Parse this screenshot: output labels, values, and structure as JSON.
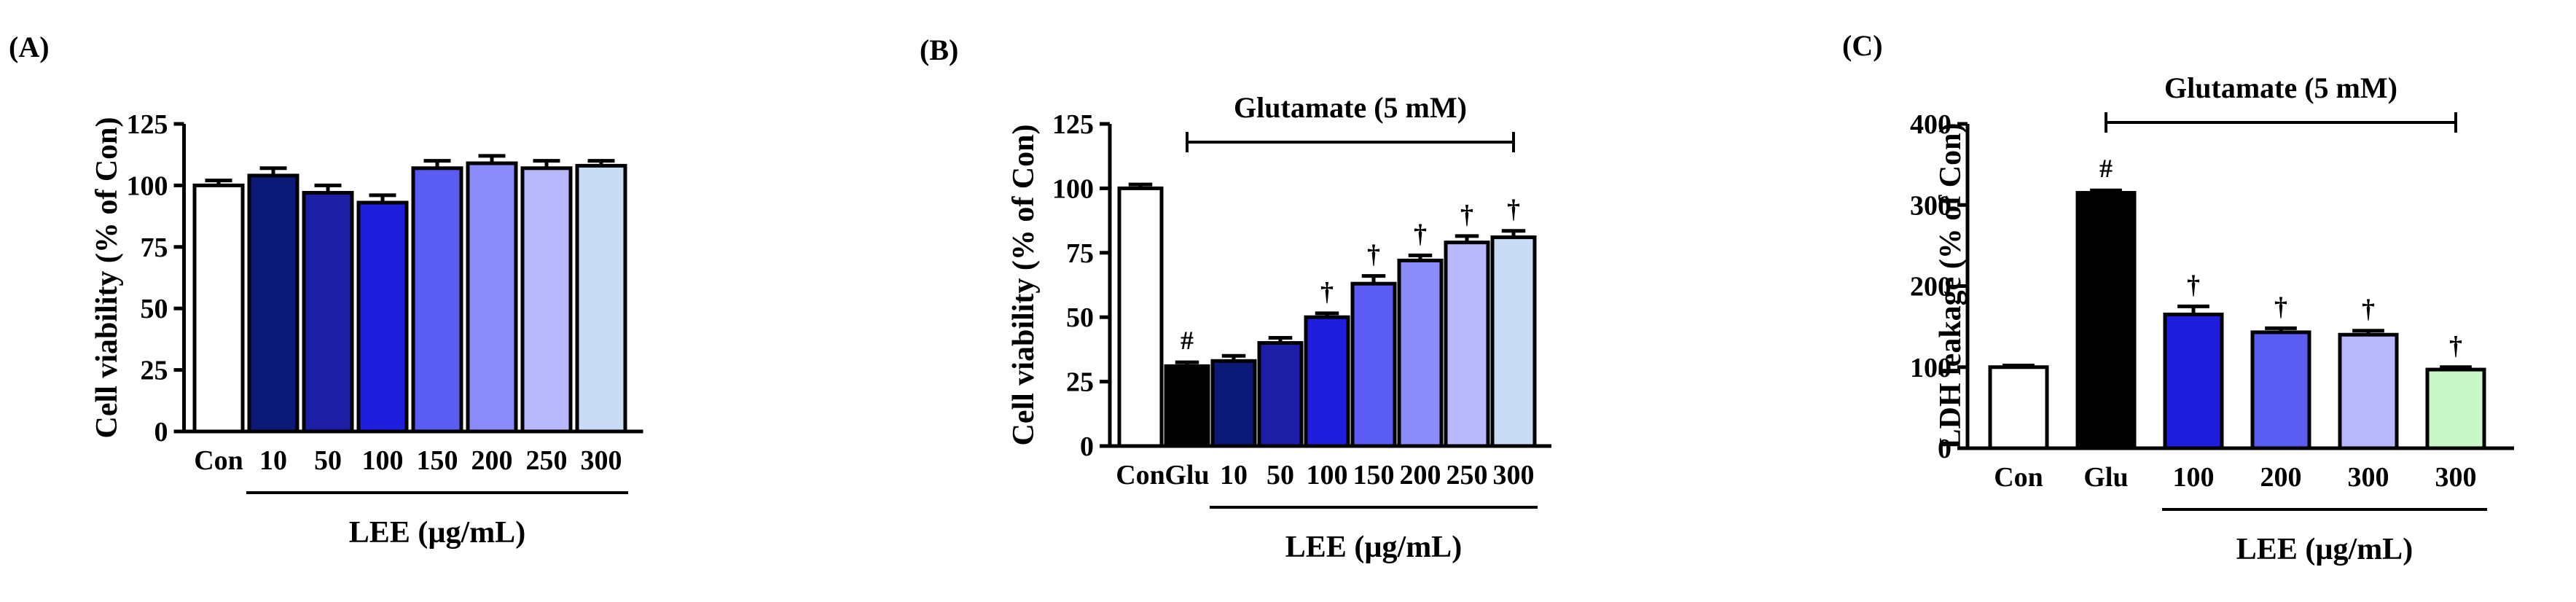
{
  "figure": {
    "panels": [
      "(A)",
      "(B)",
      "(C)"
    ]
  },
  "chart_data": [
    {
      "type": "bar",
      "panel": "(A)",
      "title": "",
      "ylabel": "Cell viability (% of Con)",
      "xlabel": "LEE (µg/mL)",
      "ylim": [
        0,
        125
      ],
      "yticks": [
        "0",
        "25",
        "50",
        "75",
        "100",
        "125"
      ],
      "categories": [
        "Con",
        "10",
        "50",
        "100",
        "150",
        "200",
        "250",
        "300"
      ],
      "values": [
        100,
        104,
        97,
        93,
        107,
        109,
        107,
        108
      ],
      "errors": [
        2,
        3,
        3,
        3,
        3,
        3,
        3,
        2
      ],
      "colors": [
        "#ffffff",
        "#0b1a78",
        "#1c1fa6",
        "#1e1edc",
        "#5a5cf2",
        "#8a8cfa",
        "#b8b9fd",
        "#c8dcf6"
      ],
      "annotations": [
        "",
        "",
        "",
        "",
        "",
        "",
        "",
        ""
      ],
      "bracket_label": "",
      "group_line_from": 1
    },
    {
      "type": "bar",
      "panel": "(B)",
      "title": "",
      "ylabel": "Cell viability (% of Con)",
      "xlabel": "LEE (µg/mL)",
      "ylim": [
        0,
        125
      ],
      "yticks": [
        "0",
        "25",
        "50",
        "75",
        "100",
        "125"
      ],
      "categories": [
        "Con",
        "Glu",
        "10",
        "50",
        "100",
        "150",
        "200",
        "250",
        "300"
      ],
      "values": [
        100,
        31,
        33,
        40,
        50,
        63,
        72,
        79,
        81
      ],
      "errors": [
        1.5,
        1.5,
        2,
        2,
        1.5,
        3,
        2,
        2.5,
        2.5
      ],
      "colors": [
        "#ffffff",
        "#000000",
        "#0b1a78",
        "#1c1fa6",
        "#1e1edc",
        "#5a5cf2",
        "#8a8cfa",
        "#b8b9fd",
        "#c8dcf6"
      ],
      "annotations": [
        "",
        "#",
        "",
        "",
        "†",
        "†",
        "†",
        "†",
        "†"
      ],
      "bracket_label": "Glutamate (5 mM)",
      "group_line_from": 2
    },
    {
      "type": "bar",
      "panel": "(C)",
      "title": "",
      "ylabel": "LDH leakage (% of Con)",
      "xlabel": "LEE (µg/mL)",
      "ylim": [
        0,
        400
      ],
      "yticks": [
        "0",
        "100",
        "200",
        "300",
        "400"
      ],
      "categories": [
        "Con",
        "Glu",
        "100",
        "200",
        "300",
        "300"
      ],
      "values": [
        100,
        315,
        165,
        143,
        140,
        97
      ],
      "errors": [
        2,
        3,
        10,
        5,
        5,
        3
      ],
      "colors": [
        "#ffffff",
        "#000000",
        "#1e1edc",
        "#5a5cf2",
        "#b8b9fd",
        "#c8f8c8"
      ],
      "annotations": [
        "",
        "#",
        "†",
        "†",
        "†",
        "†"
      ],
      "bracket_label": "Glutamate (5 mM)",
      "group_line_from": 2
    }
  ]
}
